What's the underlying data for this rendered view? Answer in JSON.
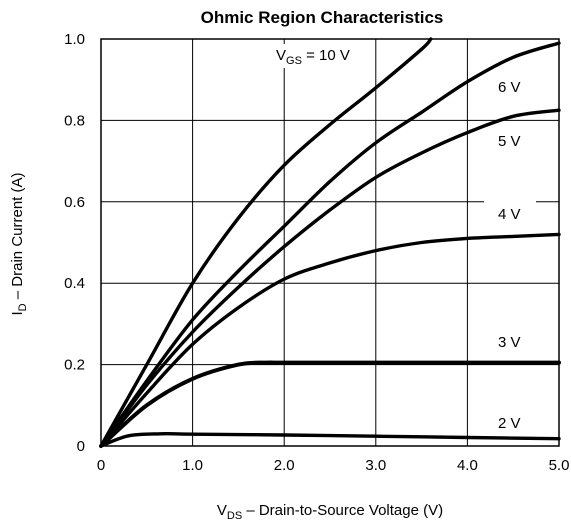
{
  "chart_data": {
    "type": "line",
    "title": "Ohmic Region Characteristics",
    "xlabel": {
      "main": "V",
      "sub": "DS",
      "rest": "  –  Drain-to-Source Voltage (V)"
    },
    "ylabel": {
      "main": "I",
      "sub": "D",
      "rest": " – Drain Current (A)"
    },
    "xlim": [
      0,
      5
    ],
    "ylim": [
      0,
      1
    ],
    "grid": true,
    "x_ticks": [
      {
        "value": 0,
        "label": "0"
      },
      {
        "value": 1,
        "label": "1.0"
      },
      {
        "value": 2,
        "label": "2.0"
      },
      {
        "value": 3,
        "label": "3.0"
      },
      {
        "value": 4,
        "label": "4.0"
      },
      {
        "value": 5,
        "label": "5.0"
      }
    ],
    "y_ticks": [
      {
        "value": 0,
        "label": "0"
      },
      {
        "value": 0.2,
        "label": "0.2"
      },
      {
        "value": 0.4,
        "label": "0.4"
      },
      {
        "value": 0.6,
        "label": "0.6"
      },
      {
        "value": 0.8,
        "label": "0.8"
      },
      {
        "value": 1.0,
        "label": "1.0"
      }
    ],
    "series": [
      {
        "name": "10 V",
        "label": {
          "main": "V",
          "sub": "GS",
          "rest": " = 10 V"
        },
        "x": [
          0,
          0.5,
          1.0,
          1.5,
          2.0,
          2.5,
          3.0,
          3.5,
          3.6
        ],
        "y": [
          0,
          0.2,
          0.4,
          0.56,
          0.69,
          0.79,
          0.88,
          0.975,
          1.0
        ]
      },
      {
        "name": "6 V",
        "label": {
          "main": "",
          "sub": "",
          "rest": "6 V"
        },
        "x": [
          0,
          0.5,
          1.0,
          1.5,
          2.0,
          2.5,
          3.0,
          3.5,
          4.0,
          4.5,
          5.0
        ],
        "y": [
          0,
          0.16,
          0.31,
          0.43,
          0.54,
          0.65,
          0.745,
          0.82,
          0.895,
          0.955,
          0.99
        ]
      },
      {
        "name": "5 V",
        "label": {
          "main": "",
          "sub": "",
          "rest": "5 V"
        },
        "x": [
          0,
          0.5,
          1.0,
          1.5,
          2.0,
          2.5,
          3.0,
          3.5,
          4.0,
          4.5,
          5.0
        ],
        "y": [
          0,
          0.15,
          0.28,
          0.39,
          0.49,
          0.58,
          0.66,
          0.72,
          0.77,
          0.81,
          0.825
        ]
      },
      {
        "name": "4 V",
        "label": {
          "main": "",
          "sub": "",
          "rest": "4 V"
        },
        "x": [
          0,
          0.5,
          1.0,
          1.5,
          2.0,
          2.5,
          3.0,
          3.5,
          4.0,
          4.5,
          5.0
        ],
        "y": [
          0,
          0.13,
          0.25,
          0.34,
          0.41,
          0.45,
          0.48,
          0.5,
          0.51,
          0.515,
          0.52
        ]
      },
      {
        "name": "3 V",
        "label": {
          "main": "",
          "sub": "",
          "rest": "3 V"
        },
        "x": [
          0,
          0.5,
          1.0,
          1.5,
          1.8,
          2.0,
          3.0,
          4.0,
          5.0
        ],
        "y": [
          0,
          0.1,
          0.165,
          0.2,
          0.205,
          0.205,
          0.205,
          0.205,
          0.205
        ]
      },
      {
        "name": "2 V",
        "label": {
          "main": "",
          "sub": "",
          "rest": "2 V"
        },
        "x": [
          0,
          0.3,
          0.65,
          1.0,
          2.0,
          3.0,
          4.0,
          5.0
        ],
        "y": [
          0,
          0.025,
          0.03,
          0.029,
          0.027,
          0.024,
          0.021,
          0.018
        ]
      }
    ]
  }
}
